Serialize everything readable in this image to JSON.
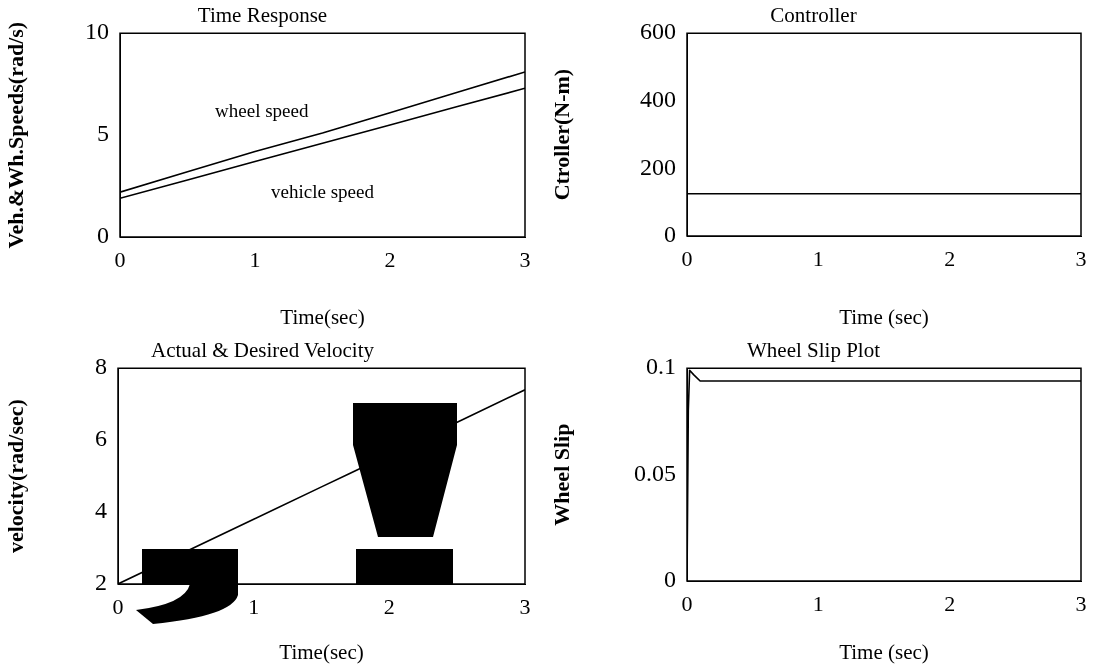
{
  "chart_data": [
    {
      "type": "line",
      "title": "Time Response",
      "xlabel": "Time(sec)",
      "ylabel": "Veh.&Wh.Speeds(rad/s)",
      "xlim": [
        0,
        3
      ],
      "xticks": [
        0,
        1,
        2,
        3
      ],
      "ylim": [
        0,
        10
      ],
      "yticks": [
        0,
        5,
        10
      ],
      "grid": false,
      "legend": false,
      "marker": "none",
      "series": [
        {
          "color": "#000000",
          "x": [
            0,
            0.5,
            1,
            1.5,
            2,
            2.5,
            3
          ],
          "values": [
            2.2,
            3.2,
            4.2,
            5.1,
            6.1,
            7.1,
            8.1
          ]
        },
        {
          "color": "#000000",
          "x": [
            0,
            0.5,
            1,
            1.5,
            2,
            2.5,
            3
          ],
          "values": [
            1.9,
            2.8,
            3.7,
            4.6,
            5.5,
            6.4,
            7.3
          ]
        }
      ],
      "annotations": [
        "wheel speed",
        "vehicle speed"
      ]
    },
    {
      "type": "line",
      "title": "Controller",
      "xlabel": "Time (sec)",
      "ylabel": "Ctroller(N-m)",
      "xlim": [
        0,
        3
      ],
      "xticks": [
        0,
        1,
        2,
        3
      ],
      "ylim": [
        0,
        600
      ],
      "yticks": [
        0,
        200,
        400,
        600
      ],
      "grid": false,
      "legend": false,
      "marker": "none",
      "series": [
        {
          "color": "#000000",
          "x": [
            0,
            3
          ],
          "values": [
            125,
            125
          ]
        }
      ]
    },
    {
      "type": "line",
      "title": "Actual & Desired Velocity",
      "xlabel": "Time(sec)",
      "ylabel": "velocity(rad/sec)",
      "xlim": [
        0,
        3
      ],
      "xticks": [
        0,
        1,
        2,
        3
      ],
      "ylim": [
        2,
        8
      ],
      "yticks": [
        2,
        4,
        6,
        8
      ],
      "grid": false,
      "legend": false,
      "marker": "none",
      "series": [
        {
          "color": "#000000",
          "x": [
            0,
            1,
            1.5,
            1.7,
            2.55,
            3
          ],
          "values": [
            2.0,
            3.8,
            4.7,
            5.06,
            6.59,
            7.4
          ]
        }
      ]
    },
    {
      "type": "line",
      "title": "Wheel Slip Plot",
      "xlabel": "Time (sec)",
      "ylabel": "Wheel Slip",
      "xlim": [
        0,
        3
      ],
      "xticks": [
        0,
        1,
        2,
        3
      ],
      "ylim": [
        0,
        0.1
      ],
      "yticks": [
        0,
        0.05,
        0.1
      ],
      "grid": false,
      "legend": false,
      "marker": "none",
      "series": [
        {
          "color": "#000000",
          "x": [
            0,
            0.01,
            0.02,
            0.05,
            0.1,
            1,
            2,
            3
          ],
          "values": [
            0,
            0.08,
            0.099,
            0.097,
            0.094,
            0.094,
            0.094,
            0.094
          ]
        }
      ]
    }
  ]
}
